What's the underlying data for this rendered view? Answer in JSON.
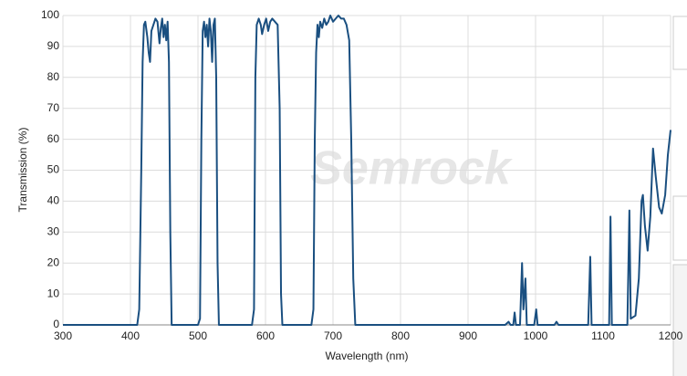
{
  "chart_data": {
    "type": "line",
    "xlabel": "Wavelength (nm)",
    "ylabel": "Transmission (%)",
    "watermark": "Semrock",
    "x": [
      300,
      410,
      413,
      416,
      418,
      420,
      422,
      425,
      427,
      429,
      431,
      434,
      437,
      440,
      443,
      445,
      447,
      449,
      451,
      453,
      455,
      457,
      459,
      461,
      500,
      503,
      505,
      507,
      509,
      511,
      513,
      515,
      517,
      519,
      521,
      523,
      525,
      527,
      529,
      531,
      580,
      583,
      585,
      587,
      590,
      593,
      595,
      598,
      601,
      604,
      607,
      610,
      614,
      618,
      621,
      623,
      625,
      668,
      671,
      673,
      675,
      677,
      679,
      681,
      684,
      687,
      690,
      693,
      696,
      700,
      704,
      708,
      712,
      716,
      720,
      724,
      727,
      730,
      733,
      955,
      960,
      963,
      967,
      969,
      971,
      977,
      980,
      982,
      985,
      987,
      998,
      1001,
      1003,
      1028,
      1031,
      1034,
      1078,
      1081,
      1083,
      1109,
      1111,
      1113,
      1136,
      1139,
      1141,
      1148,
      1153,
      1157,
      1159,
      1162,
      1166,
      1170,
      1174,
      1178,
      1183,
      1187,
      1192,
      1196,
      1200
    ],
    "series": [
      {
        "color": "#1a4f80",
        "values": [
          0,
          0,
          5,
          50,
          85,
          97,
          98,
          93,
          88,
          85,
          95,
          97,
          99,
          98,
          91,
          96,
          99,
          93,
          97,
          92,
          98,
          85,
          30,
          0,
          0,
          2,
          60,
          95,
          98,
          93,
          97,
          90,
          99,
          95,
          85,
          97,
          99,
          80,
          20,
          0,
          0,
          5,
          80,
          97,
          99,
          97,
          94,
          97,
          99,
          95,
          98,
          99,
          98,
          97,
          70,
          10,
          0,
          0,
          5,
          60,
          88,
          97,
          93,
          98,
          96,
          99,
          97,
          98,
          100,
          98,
          99,
          100,
          99,
          99,
          97,
          92,
          60,
          15,
          0,
          0,
          1,
          0,
          0,
          4,
          0,
          0,
          20,
          5,
          15,
          0,
          0,
          5,
          0,
          0,
          1,
          0,
          0,
          22,
          0,
          0,
          35,
          0,
          0,
          37,
          2,
          3,
          15,
          40,
          42,
          32,
          24,
          35,
          57,
          48,
          38,
          36,
          42,
          55,
          63
        ]
      }
    ],
    "xlim": [
      300,
      1200
    ],
    "xticks": [
      300,
      400,
      500,
      600,
      700,
      800,
      900,
      1000,
      1100,
      1200
    ],
    "ylim": [
      0,
      100
    ],
    "yticks": [
      0,
      10,
      20,
      30,
      40,
      50,
      60,
      70,
      80,
      90,
      100
    ],
    "grid": true
  }
}
